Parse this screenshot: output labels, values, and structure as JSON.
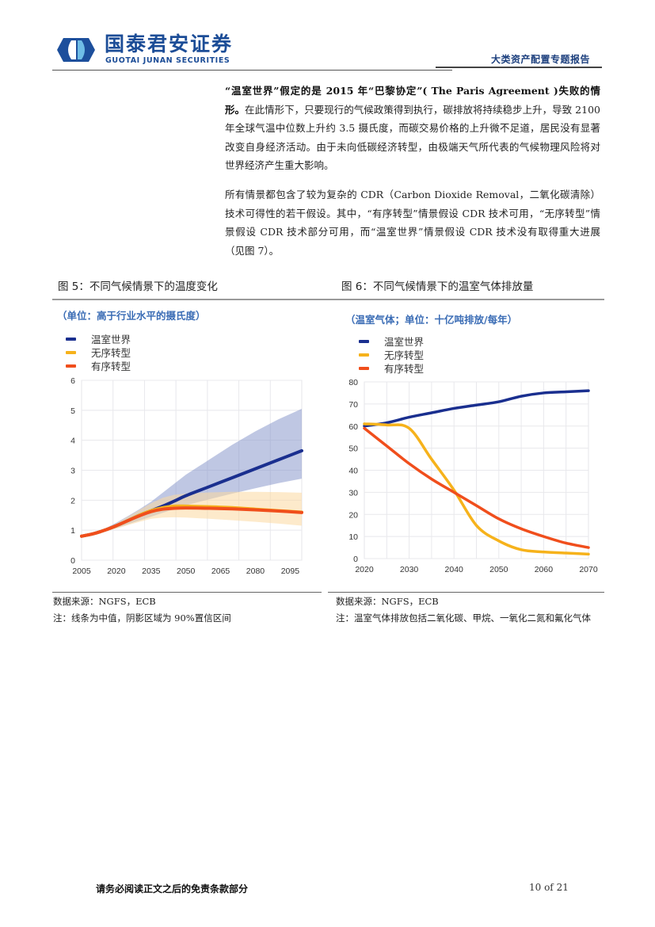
{
  "header": {
    "logo_cn": "国泰君安证券",
    "logo_en": "GUOTAI JUNAN SECURITIES",
    "report_type": "大类资产配置专题报告"
  },
  "body": {
    "paragraph1_bold": "“温室世界”假定的是 2015 年“巴黎协定”( The Paris Agreement )失败的情形。",
    "paragraph1_text": "在此情形下，只要现行的气候政策得到执行，碳排放将持续稳步上升，导致 2100 年全球气温中位数上升约 3.5 摄氏度，而碳交易价格的上升微不足道，居民没有显著改变自身经济活动。由于未向低碳经济转型，由极端天气所代表的气候物理风险将对世界经济产生重大影响。",
    "paragraph2": "所有情景都包含了较为复杂的 CDR（Carbon Dioxide Removal，二氧化碳清除）技术可得性的若干假设。其中，“有序转型”情景假设 CDR 技术可用，“无序转型”情景假设 CDR 技术部分可用，而“温室世界”情景假设 CDR 技术没有取得重大进展（见图 7）。"
  },
  "figures": [
    {
      "title": "图 5：不同气候情景下的温度变化",
      "unit": "（单位：高于行业水平的摄氏度）",
      "source": "数据来源：NGFS，ECB",
      "note": "注：线条为中值，阴影区域为 90%置信区间"
    },
    {
      "title": "图 6：不同气候情景下的温室气体排放量",
      "unit": "（温室气体；单位：十亿吨排放/每年）",
      "source": "数据来源：NGFS，ECB",
      "note": "注：温室气体排放包括二氧化碳、甲烷、一氧化二氮和氟化气体"
    }
  ],
  "legend": [
    {
      "label": "温室世界",
      "color": "#1a2f8f"
    },
    {
      "label": "无序转型",
      "color": "#f6b21b"
    },
    {
      "label": "有序转型",
      "color": "#f04e1c"
    }
  ],
  "chart_data": [
    {
      "type": "line",
      "title": "图 5：不同气候情景下的温度变化",
      "subtitle": "（单位：高于行业水平的摄氏度）",
      "xlabel": "",
      "ylabel": "摄氏度",
      "x_ticks": [
        "2005",
        "2020",
        "2035",
        "2050",
        "2065",
        "2080",
        "2095"
      ],
      "y_ticks": [
        "0",
        "1",
        "2",
        "3",
        "4",
        "5",
        "6"
      ],
      "xlim": [
        2005,
        2100
      ],
      "ylim": [
        0,
        6
      ],
      "grid": true,
      "legend_position": "top-left",
      "x": [
        2005,
        2010,
        2015,
        2020,
        2025,
        2030,
        2035,
        2040,
        2045,
        2050,
        2060,
        2070,
        2080,
        2090,
        2100
      ],
      "series": [
        {
          "name": "温室世界",
          "color": "#1a2f8f",
          "values": [
            0.8,
            0.88,
            1.0,
            1.15,
            1.32,
            1.5,
            1.65,
            1.8,
            1.97,
            2.15,
            2.45,
            2.75,
            3.05,
            3.35,
            3.65
          ],
          "band_lower": [
            0.8,
            0.86,
            0.96,
            1.07,
            1.2,
            1.32,
            1.45,
            1.58,
            1.7,
            1.83,
            2.03,
            2.22,
            2.4,
            2.57,
            2.72
          ],
          "band_upper": [
            0.8,
            0.9,
            1.05,
            1.25,
            1.47,
            1.7,
            1.95,
            2.25,
            2.55,
            2.85,
            3.35,
            3.85,
            4.3,
            4.7,
            5.05
          ]
        },
        {
          "name": "无序转型",
          "color": "#f6b21b",
          "values": [
            0.8,
            0.88,
            1.0,
            1.15,
            1.32,
            1.5,
            1.65,
            1.75,
            1.8,
            1.8,
            1.78,
            1.75,
            1.7,
            1.65,
            1.6
          ],
          "band_lower": [
            0.8,
            0.86,
            0.96,
            1.05,
            1.17,
            1.28,
            1.38,
            1.42,
            1.43,
            1.42,
            1.38,
            1.33,
            1.28,
            1.22,
            1.15
          ],
          "band_upper": [
            0.8,
            0.9,
            1.04,
            1.22,
            1.45,
            1.68,
            1.9,
            2.08,
            2.18,
            2.22,
            2.26,
            2.28,
            2.28,
            2.27,
            2.25
          ]
        },
        {
          "name": "有序转型",
          "color": "#f04e1c",
          "values": [
            0.8,
            0.88,
            1.0,
            1.15,
            1.32,
            1.48,
            1.62,
            1.7,
            1.73,
            1.74,
            1.73,
            1.71,
            1.68,
            1.64,
            1.59
          ]
        }
      ]
    },
    {
      "type": "line",
      "title": "图 6：不同气候情景下的温室气体排放量",
      "subtitle": "（温室气体；单位：十亿吨排放/每年）",
      "xlabel": "",
      "ylabel": "十亿吨排放/每年",
      "x_ticks": [
        "2020",
        "2030",
        "2040",
        "2050",
        "2060",
        "2070"
      ],
      "y_ticks": [
        "0",
        "10",
        "20",
        "30",
        "40",
        "50",
        "60",
        "70",
        "80"
      ],
      "xlim": [
        2020,
        2070
      ],
      "ylim": [
        0,
        80
      ],
      "grid": true,
      "legend_position": "top-left",
      "x": [
        2020,
        2025,
        2030,
        2035,
        2040,
        2045,
        2050,
        2055,
        2060,
        2065,
        2070
      ],
      "series": [
        {
          "name": "温室世界",
          "color": "#1a2f8f",
          "values": [
            60,
            61.5,
            64,
            66,
            68,
            69.5,
            71,
            73.5,
            75,
            75.5,
            76
          ]
        },
        {
          "name": "无序转型",
          "color": "#f6b21b",
          "values": [
            61,
            60.5,
            59,
            45,
            31,
            15,
            8,
            4,
            3,
            2.5,
            2
          ]
        },
        {
          "name": "有序转型",
          "color": "#f04e1c",
          "values": [
            59,
            51,
            43,
            36,
            30,
            24,
            18,
            13.5,
            10,
            7,
            5
          ]
        }
      ]
    }
  ],
  "footer": {
    "disclaimer": "请务必阅读正文之后的免责条款部分",
    "page": "10 of 21"
  }
}
